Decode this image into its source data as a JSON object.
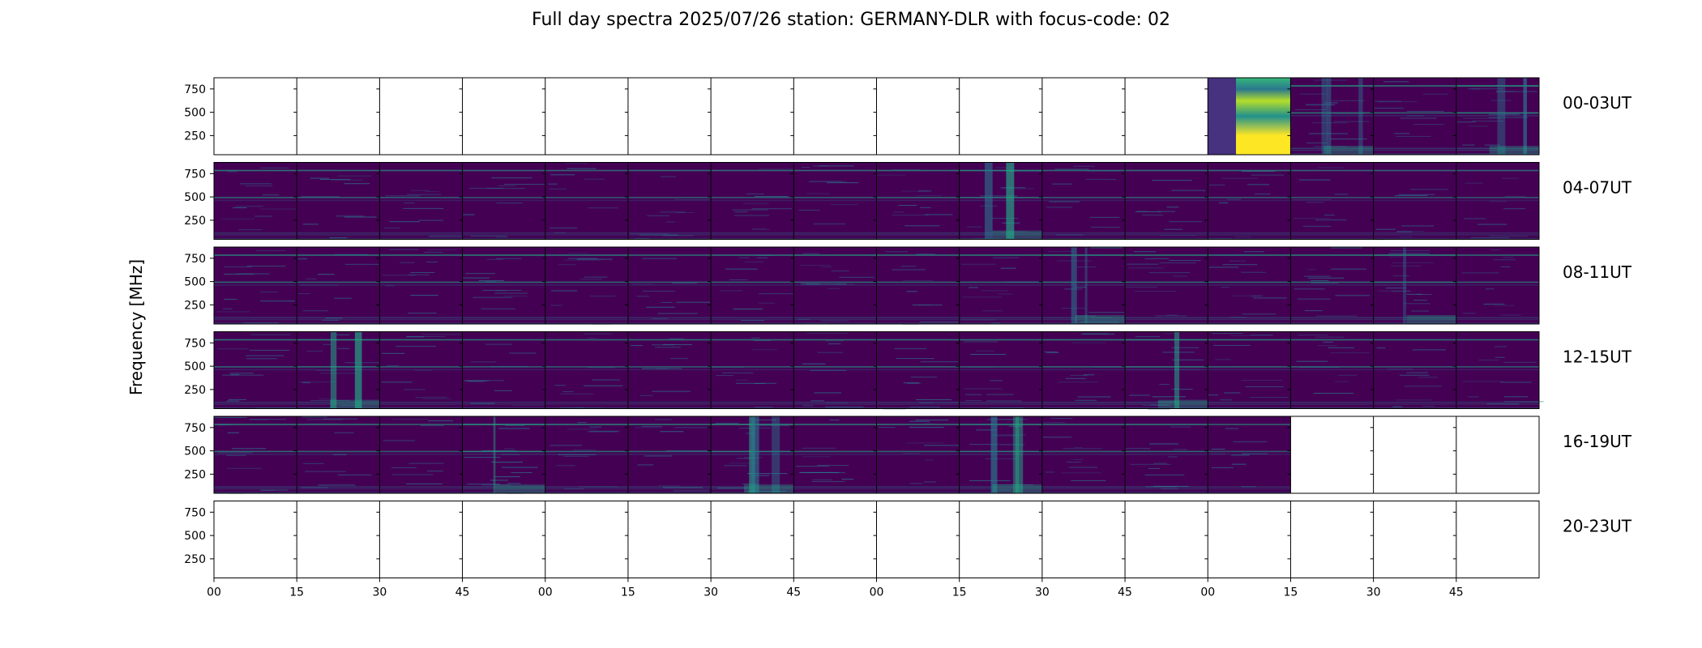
{
  "title": "Full day spectra 2025/07/26 station: GERMANY-DLR with focus-code: 02",
  "chart_data": {
    "type": "heatmap",
    "title": "Full day spectra 2025/07/26 station: GERMANY-DLR with focus-code: 02",
    "ylabel": "Frequency [MHz]",
    "xlabel": "",
    "y_ticks": [
      250,
      500,
      750
    ],
    "ylim": [
      45,
      870
    ],
    "x_ticks": [
      "00",
      "15",
      "30",
      "45",
      "00",
      "15",
      "30",
      "45",
      "00",
      "15",
      "30",
      "45",
      "00",
      "15",
      "30",
      "45"
    ],
    "colormap": "viridis",
    "colors": {
      "background": "#440154",
      "mid": "#2a788e",
      "high": "#22a884",
      "peak": "#fde725"
    },
    "rows": [
      {
        "label": "00-03UT",
        "present": [
          0,
          0,
          0,
          0,
          0,
          0,
          0,
          0,
          0,
          0,
          0,
          0,
          1,
          1,
          1,
          1
        ],
        "intensity": [
          0,
          0,
          0,
          0,
          0,
          0,
          0,
          0,
          0,
          0,
          0,
          0,
          0.55,
          0.35,
          0.25,
          0.45
        ]
      },
      {
        "label": "04-07UT",
        "present": [
          1,
          1,
          1,
          1,
          1,
          1,
          1,
          1,
          1,
          1,
          1,
          1,
          1,
          1,
          1,
          1
        ],
        "intensity": [
          0.25,
          0.2,
          0.2,
          0.15,
          0.15,
          0.2,
          0.2,
          0.2,
          0.25,
          0.35,
          0.2,
          0.2,
          0.2,
          0.15,
          0.15,
          0.15
        ]
      },
      {
        "label": "08-11UT",
        "present": [
          1,
          1,
          1,
          1,
          1,
          1,
          1,
          1,
          1,
          1,
          1,
          1,
          1,
          1,
          1,
          1
        ],
        "intensity": [
          0.25,
          0.25,
          0.25,
          0.3,
          0.25,
          0.2,
          0.25,
          0.3,
          0.25,
          0.3,
          0.35,
          0.3,
          0.3,
          0.3,
          0.4,
          0.2
        ]
      },
      {
        "label": "12-15UT",
        "present": [
          1,
          1,
          1,
          1,
          1,
          1,
          1,
          1,
          1,
          1,
          1,
          1,
          1,
          1,
          1,
          1
        ],
        "intensity": [
          0.25,
          0.35,
          0.25,
          0.2,
          0.2,
          0.2,
          0.2,
          0.25,
          0.25,
          0.25,
          0.3,
          0.4,
          0.3,
          0.25,
          0.2,
          0.2
        ]
      },
      {
        "label": "16-19UT",
        "present": [
          1,
          1,
          1,
          1,
          1,
          1,
          1,
          1,
          1,
          1,
          1,
          1,
          1,
          0,
          0,
          0
        ],
        "intensity": [
          0.3,
          0.25,
          0.15,
          0.45,
          0.3,
          0.25,
          0.4,
          0.25,
          0.25,
          0.35,
          0.25,
          0.3,
          0.15,
          0,
          0,
          0
        ]
      },
      {
        "label": "20-23UT",
        "present": [
          0,
          0,
          0,
          0,
          0,
          0,
          0,
          0,
          0,
          0,
          0,
          0,
          0,
          0,
          0,
          0
        ],
        "intensity": [
          0,
          0,
          0,
          0,
          0,
          0,
          0,
          0,
          0,
          0,
          0,
          0,
          0,
          0,
          0,
          0
        ]
      }
    ],
    "grid": false
  }
}
